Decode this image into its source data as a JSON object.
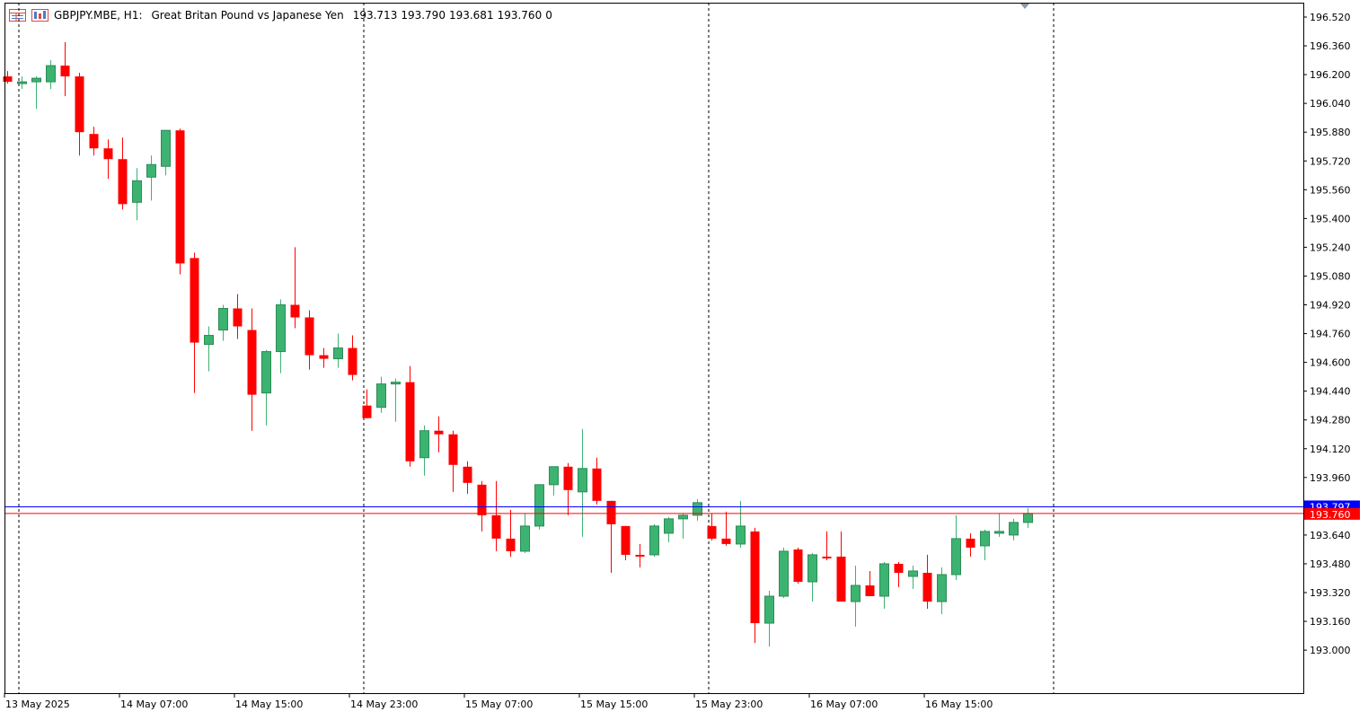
{
  "header": {
    "symbol_timeframe": "GBPJPY.MBE, H1:",
    "description": "Great Britan Pound vs Japanese Yen",
    "open": "193.713",
    "high": "193.790",
    "low": "193.681",
    "close": "193.760",
    "volume": "0"
  },
  "colors": {
    "bull": "#3cb371",
    "bear": "#ff0000",
    "ask_line": "#0000ff",
    "bid_line": "#ff0000",
    "grid": "#000000",
    "axis": "#000000"
  },
  "icons": [
    "table-icon",
    "chart-icon"
  ],
  "chart_data": {
    "type": "candlestick",
    "ylim": [
      192.84,
      196.58
    ],
    "y_ticks": [
      "196.520",
      "196.360",
      "196.200",
      "196.040",
      "195.880",
      "195.720",
      "195.560",
      "195.400",
      "195.240",
      "195.080",
      "194.920",
      "194.760",
      "194.600",
      "194.440",
      "194.280",
      "194.120",
      "193.960",
      "193.800",
      "193.640",
      "193.480",
      "193.320",
      "193.160",
      "193.000"
    ],
    "x_tick_labels": [
      "13 May 2025",
      "14 May 07:00",
      "14 May 15:00",
      "14 May 23:00",
      "15 May 07:00",
      "15 May 15:00",
      "15 May 23:00",
      "16 May 07:00",
      "16 May 15:00"
    ],
    "ask_price": 193.797,
    "ask_label": "193.797",
    "bid_price": 193.76,
    "bid_label": "193.760",
    "candles": [
      {
        "o": 196.19,
        "h": 196.22,
        "l": 196.15,
        "c": 196.16
      },
      {
        "o": 196.15,
        "h": 196.19,
        "l": 196.12,
        "c": 196.16
      },
      {
        "o": 196.16,
        "h": 196.19,
        "l": 196.01,
        "c": 196.18
      },
      {
        "o": 196.16,
        "h": 196.28,
        "l": 196.12,
        "c": 196.25
      },
      {
        "o": 196.25,
        "h": 196.38,
        "l": 196.08,
        "c": 196.19
      },
      {
        "o": 196.19,
        "h": 196.21,
        "l": 195.75,
        "c": 195.88
      },
      {
        "o": 195.87,
        "h": 195.91,
        "l": 195.75,
        "c": 195.79
      },
      {
        "o": 195.79,
        "h": 195.84,
        "l": 195.62,
        "c": 195.73
      },
      {
        "o": 195.73,
        "h": 195.85,
        "l": 195.45,
        "c": 195.48
      },
      {
        "o": 195.49,
        "h": 195.68,
        "l": 195.39,
        "c": 195.61
      },
      {
        "o": 195.63,
        "h": 195.75,
        "l": 195.5,
        "c": 195.7
      },
      {
        "o": 195.69,
        "h": 195.89,
        "l": 195.64,
        "c": 195.89
      },
      {
        "o": 195.89,
        "h": 195.9,
        "l": 195.09,
        "c": 195.15
      },
      {
        "o": 195.18,
        "h": 195.21,
        "l": 194.43,
        "c": 194.71
      },
      {
        "o": 194.7,
        "h": 194.8,
        "l": 194.55,
        "c": 194.75
      },
      {
        "o": 194.78,
        "h": 194.92,
        "l": 194.72,
        "c": 194.9
      },
      {
        "o": 194.9,
        "h": 194.98,
        "l": 194.73,
        "c": 194.8
      },
      {
        "o": 194.78,
        "h": 194.9,
        "l": 194.22,
        "c": 194.42
      },
      {
        "o": 194.43,
        "h": 194.67,
        "l": 194.25,
        "c": 194.66
      },
      {
        "o": 194.66,
        "h": 194.95,
        "l": 194.54,
        "c": 194.92
      },
      {
        "o": 194.92,
        "h": 195.24,
        "l": 194.79,
        "c": 194.85
      },
      {
        "o": 194.85,
        "h": 194.89,
        "l": 194.56,
        "c": 194.64
      },
      {
        "o": 194.64,
        "h": 194.68,
        "l": 194.57,
        "c": 194.62
      },
      {
        "o": 194.62,
        "h": 194.76,
        "l": 194.57,
        "c": 194.68
      },
      {
        "o": 194.68,
        "h": 194.75,
        "l": 194.5,
        "c": 194.53
      },
      {
        "o": 194.36,
        "h": 194.45,
        "l": 194.29,
        "c": 194.29
      },
      {
        "o": 194.35,
        "h": 194.52,
        "l": 194.32,
        "c": 194.48
      },
      {
        "o": 194.48,
        "h": 194.51,
        "l": 194.27,
        "c": 194.49
      },
      {
        "o": 194.49,
        "h": 194.58,
        "l": 194.02,
        "c": 194.05
      },
      {
        "o": 194.07,
        "h": 194.25,
        "l": 193.97,
        "c": 194.22
      },
      {
        "o": 194.22,
        "h": 194.3,
        "l": 194.1,
        "c": 194.2
      },
      {
        "o": 194.2,
        "h": 194.22,
        "l": 193.88,
        "c": 194.03
      },
      {
        "o": 194.02,
        "h": 194.05,
        "l": 193.87,
        "c": 193.93
      },
      {
        "o": 193.92,
        "h": 193.94,
        "l": 193.66,
        "c": 193.75
      },
      {
        "o": 193.75,
        "h": 193.94,
        "l": 193.55,
        "c": 193.62
      },
      {
        "o": 193.62,
        "h": 193.78,
        "l": 193.52,
        "c": 193.55
      },
      {
        "o": 193.55,
        "h": 193.76,
        "l": 193.54,
        "c": 193.69
      },
      {
        "o": 193.69,
        "h": 193.92,
        "l": 193.67,
        "c": 193.92
      },
      {
        "o": 193.92,
        "h": 194.0,
        "l": 193.86,
        "c": 194.02
      },
      {
        "o": 194.02,
        "h": 194.04,
        "l": 193.75,
        "c": 193.89
      },
      {
        "o": 193.88,
        "h": 194.23,
        "l": 193.63,
        "c": 194.01
      },
      {
        "o": 194.01,
        "h": 194.07,
        "l": 193.81,
        "c": 193.83
      },
      {
        "o": 193.83,
        "h": 193.83,
        "l": 193.43,
        "c": 193.7
      },
      {
        "o": 193.69,
        "h": 193.69,
        "l": 193.5,
        "c": 193.53
      },
      {
        "o": 193.53,
        "h": 193.59,
        "l": 193.46,
        "c": 193.52
      },
      {
        "o": 193.53,
        "h": 193.7,
        "l": 193.52,
        "c": 193.69
      },
      {
        "o": 193.65,
        "h": 193.74,
        "l": 193.6,
        "c": 193.73
      },
      {
        "o": 193.73,
        "h": 193.76,
        "l": 193.62,
        "c": 193.75
      },
      {
        "o": 193.75,
        "h": 193.84,
        "l": 193.72,
        "c": 193.82
      },
      {
        "o": 193.69,
        "h": 193.76,
        "l": 193.61,
        "c": 193.62
      },
      {
        "o": 193.62,
        "h": 193.77,
        "l": 193.58,
        "c": 193.59
      },
      {
        "o": 193.59,
        "h": 193.83,
        "l": 193.57,
        "c": 193.69
      },
      {
        "o": 193.66,
        "h": 193.68,
        "l": 193.04,
        "c": 193.15
      },
      {
        "o": 193.15,
        "h": 193.33,
        "l": 193.02,
        "c": 193.3
      },
      {
        "o": 193.3,
        "h": 193.57,
        "l": 193.29,
        "c": 193.55
      },
      {
        "o": 193.56,
        "h": 193.57,
        "l": 193.37,
        "c": 193.38
      },
      {
        "o": 193.38,
        "h": 193.54,
        "l": 193.27,
        "c": 193.53
      },
      {
        "o": 193.52,
        "h": 193.66,
        "l": 193.5,
        "c": 193.51
      },
      {
        "o": 193.52,
        "h": 193.66,
        "l": 193.27,
        "c": 193.27
      },
      {
        "o": 193.27,
        "h": 193.47,
        "l": 193.13,
        "c": 193.36
      },
      {
        "o": 193.36,
        "h": 193.44,
        "l": 193.3,
        "c": 193.3
      },
      {
        "o": 193.3,
        "h": 193.49,
        "l": 193.23,
        "c": 193.48
      },
      {
        "o": 193.48,
        "h": 193.49,
        "l": 193.35,
        "c": 193.43
      },
      {
        "o": 193.41,
        "h": 193.47,
        "l": 193.34,
        "c": 193.44
      },
      {
        "o": 193.43,
        "h": 193.53,
        "l": 193.23,
        "c": 193.27
      },
      {
        "o": 193.27,
        "h": 193.46,
        "l": 193.2,
        "c": 193.42
      },
      {
        "o": 193.42,
        "h": 193.75,
        "l": 193.39,
        "c": 193.62
      },
      {
        "o": 193.62,
        "h": 193.65,
        "l": 193.52,
        "c": 193.57
      },
      {
        "o": 193.58,
        "h": 193.67,
        "l": 193.5,
        "c": 193.66
      },
      {
        "o": 193.65,
        "h": 193.76,
        "l": 193.63,
        "c": 193.66
      },
      {
        "o": 193.64,
        "h": 193.73,
        "l": 193.61,
        "c": 193.71
      },
      {
        "o": 193.71,
        "h": 193.79,
        "l": 193.68,
        "c": 193.76
      }
    ]
  }
}
